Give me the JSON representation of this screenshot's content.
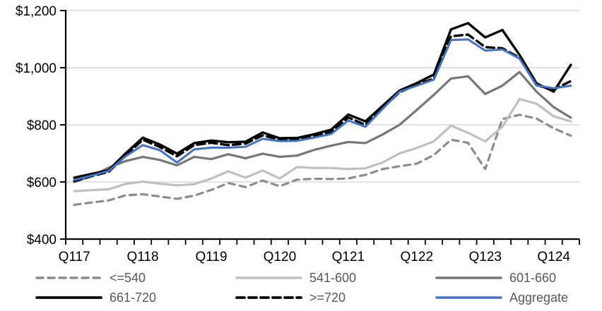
{
  "chart_data": {
    "type": "line",
    "title": "",
    "xlabel": "",
    "ylabel": "",
    "ylim": [
      400,
      1200
    ],
    "grid": "horizontal",
    "legend_position": "bottom",
    "y_ticks": [
      {
        "value": 400,
        "label": "$400"
      },
      {
        "value": 600,
        "label": "$600"
      },
      {
        "value": 800,
        "label": "$800"
      },
      {
        "value": 1000,
        "label": "$1,000"
      },
      {
        "value": 1200,
        "label": "$1,200"
      }
    ],
    "x_labels": [
      "Q117",
      "Q217",
      "Q317",
      "Q417",
      "Q118",
      "Q218",
      "Q318",
      "Q418",
      "Q119",
      "Q219",
      "Q319",
      "Q419",
      "Q120",
      "Q220",
      "Q320",
      "Q420",
      "Q121",
      "Q221",
      "Q321",
      "Q421",
      "Q122",
      "Q222",
      "Q322",
      "Q422",
      "Q123",
      "Q223",
      "Q323",
      "Q423",
      "Q124",
      "Q224"
    ],
    "shown_x_tick_indices": [
      0,
      4,
      8,
      12,
      16,
      20,
      24,
      28
    ],
    "shown_x_tick_labels": [
      "Q117",
      "Q118",
      "Q119",
      "Q120",
      "Q121",
      "Q122",
      "Q123",
      "Q124"
    ],
    "axis_color": "#000000",
    "gridline_color": "#d9d9d9",
    "tick_label_color": "#000000",
    "legend_text_color": "#595959",
    "series": [
      {
        "id": "le540",
        "label": "<=540",
        "color": "#8c8c8c",
        "dash": "9 7",
        "width": 3.2,
        "values": [
          520,
          528,
          535,
          553,
          557,
          549,
          541,
          552,
          572,
          596,
          582,
          605,
          585,
          608,
          611,
          610,
          612,
          625,
          645,
          655,
          664,
          694,
          748,
          737,
          645,
          820,
          835,
          822,
          788,
          762
        ]
      },
      {
        "id": "541-600",
        "label": "541-600",
        "color": "#bfbfbf",
        "dash": null,
        "width": 3.2,
        "values": [
          568,
          571,
          574,
          593,
          601,
          594,
          588,
          592,
          612,
          637,
          615,
          640,
          612,
          652,
          649,
          649,
          645,
          648,
          668,
          700,
          719,
          742,
          797,
          772,
          742,
          793,
          890,
          874,
          830,
          812
        ]
      },
      {
        "id": "601-660",
        "label": "601-660",
        "color": "#767676",
        "dash": null,
        "width": 3.2,
        "values": [
          600,
          620,
          650,
          673,
          688,
          677,
          658,
          688,
          680,
          697,
          683,
          699,
          688,
          692,
          712,
          727,
          740,
          736,
          766,
          800,
          852,
          905,
          962,
          970,
          908,
          937,
          985,
          916,
          862,
          825
        ]
      },
      {
        "id": "661-720",
        "label": "661-720",
        "color": "#000000",
        "dash": null,
        "width": 3.4,
        "values": [
          615,
          628,
          641,
          700,
          755,
          731,
          699,
          736,
          745,
          739,
          741,
          773,
          753,
          754,
          767,
          783,
          836,
          812,
          866,
          920,
          946,
          976,
          1134,
          1156,
          1106,
          1132,
          1045,
          945,
          916,
          1010
        ]
      },
      {
        "id": "ge720",
        "label": ">=720",
        "color": "#000000",
        "dash": "11 6",
        "width": 3.4,
        "values": [
          603,
          620,
          635,
          692,
          748,
          722,
          690,
          729,
          737,
          729,
          734,
          763,
          748,
          750,
          760,
          774,
          826,
          800,
          858,
          914,
          940,
          962,
          1110,
          1116,
          1072,
          1068,
          1035,
          938,
          924,
          953
        ]
      },
      {
        "id": "aggregate",
        "label": "Aggregate",
        "color": "#4472c4",
        "dash": null,
        "width": 3.0,
        "values": [
          607,
          622,
          638,
          690,
          729,
          711,
          668,
          714,
          720,
          720,
          723,
          751,
          743,
          744,
          755,
          768,
          815,
          793,
          855,
          916,
          937,
          958,
          1097,
          1099,
          1060,
          1064,
          1032,
          938,
          928,
          937
        ]
      }
    ]
  },
  "legend": {
    "items": [
      {
        "label": "<=540"
      },
      {
        "label": "541-600"
      },
      {
        "label": "601-660"
      },
      {
        "label": "661-720"
      },
      {
        "label": ">=720"
      },
      {
        "label": "Aggregate"
      }
    ]
  }
}
